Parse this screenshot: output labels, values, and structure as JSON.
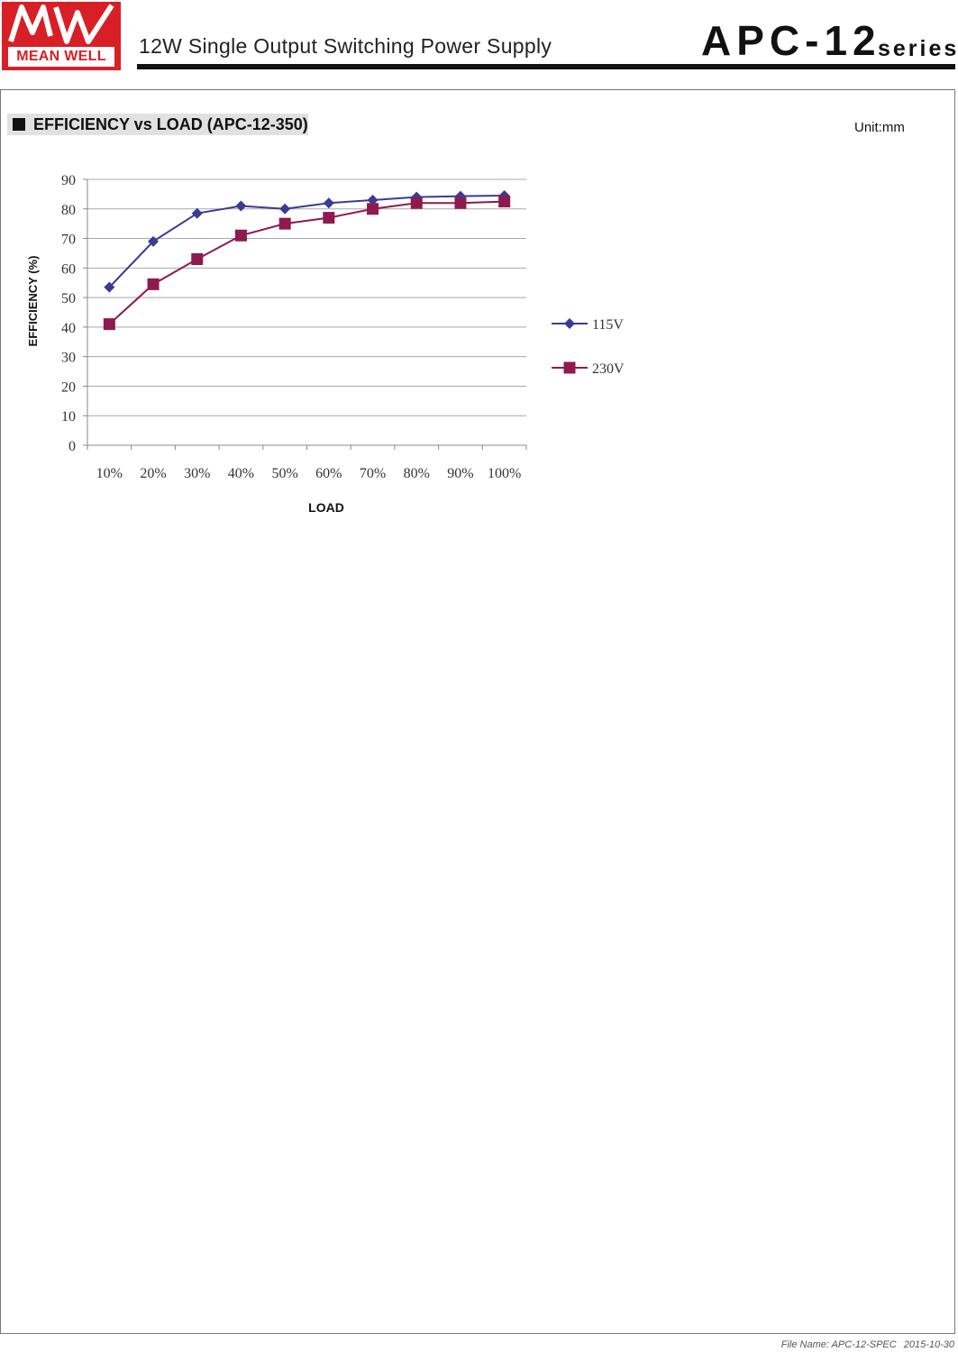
{
  "header": {
    "logo_text": "MEAN WELL",
    "logo_mark": "MW",
    "subtitle": "12W Single Output Switching Power Supply",
    "model": "APC-12",
    "series_label": "series"
  },
  "section": {
    "title": "EFFICIENCY vs LOAD (APC-12-350)",
    "unit": "Unit:mm"
  },
  "chart_data": {
    "type": "line",
    "title": "",
    "xlabel": "LOAD",
    "ylabel": "EFFICIENCY (%)",
    "categories": [
      "10%",
      "20%",
      "30%",
      "40%",
      "50%",
      "60%",
      "70%",
      "80%",
      "90%",
      "100%"
    ],
    "ylim": [
      0,
      90
    ],
    "yticks": [
      "0",
      "10",
      "20",
      "30",
      "40",
      "50",
      "60",
      "70",
      "80",
      "90"
    ],
    "grid": true,
    "legend": "right",
    "series": [
      {
        "name": "115V",
        "marker": "diamond",
        "color": "#3b3b94",
        "values": [
          53.5,
          69,
          78.5,
          81,
          80,
          82,
          83,
          84,
          84.3,
          84.5
        ]
      },
      {
        "name": "230V",
        "marker": "square",
        "color": "#8e1a4e",
        "values": [
          41,
          54.5,
          63,
          71,
          75,
          77,
          80,
          82,
          82,
          82.5
        ]
      }
    ]
  },
  "footer": {
    "file_name": "File Name: APC-12-SPEC",
    "date": "2015-10-30"
  }
}
